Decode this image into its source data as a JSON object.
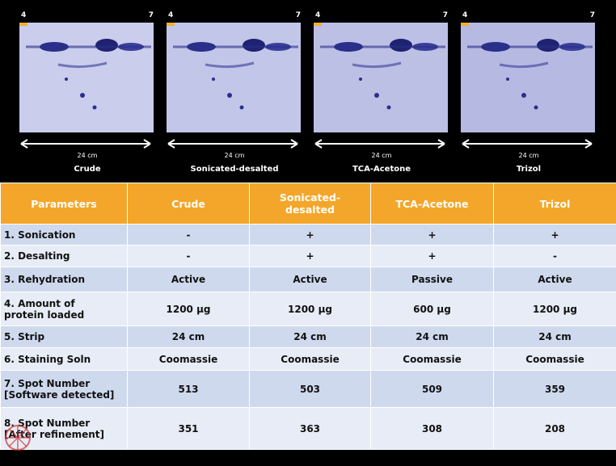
{
  "gels": [
    {
      "left": "4",
      "right": "7",
      "length": "24 cm",
      "label": "Crude"
    },
    {
      "left": "4",
      "right": "7",
      "length": "24 cm",
      "label": "Sonicated-desalted"
    },
    {
      "left": "4",
      "right": "7",
      "length": "24 cm",
      "label": "TCA-Acetone"
    },
    {
      "left": "4",
      "right": "7",
      "length": "24 cm",
      "label": "Trizol"
    }
  ],
  "table": {
    "header": [
      "Parameters",
      "Crude",
      "Sonicated-\ndesalted",
      "TCA-Acetone",
      "Trizol"
    ],
    "rows": [
      [
        "1. Sonication",
        "-",
        "+",
        "+",
        "+"
      ],
      [
        "2. Desalting",
        "-",
        "+",
        "+",
        "-"
      ],
      [
        "3. Rehydration",
        "Active",
        "Active",
        "Passive",
        "Active"
      ],
      [
        "4. Amount of\nprotein loaded",
        "1200 µg",
        "1200 µg",
        "600 µg",
        "1200 µg"
      ],
      [
        "5. Strip",
        "24 cm",
        "24 cm",
        "24 cm",
        "24 cm"
      ],
      [
        "6. Staining Soln",
        "Coomassie",
        "Coomassie",
        "Coomassie",
        "Coomassie"
      ],
      [
        "7. Spot Number\n[Software detected]",
        "513",
        "503",
        "509",
        "359"
      ],
      [
        "8. Spot Number\n[After refinement]",
        "351",
        "363",
        "308",
        "208"
      ]
    ]
  }
}
